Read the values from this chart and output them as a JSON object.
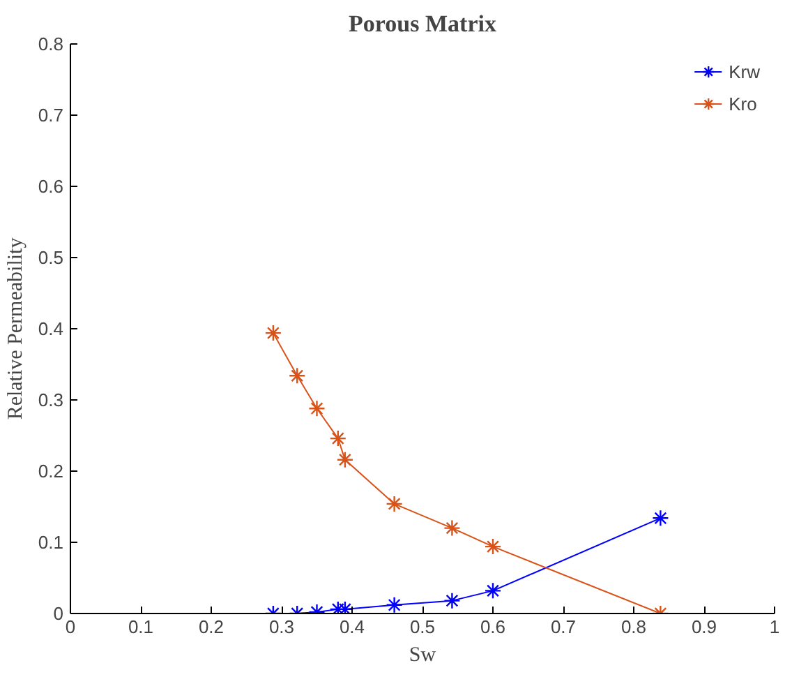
{
  "chart_data": {
    "type": "line",
    "title": "Porous Matrix",
    "xlabel": "Sw",
    "ylabel": "Relative Permeability",
    "x": [
      0.288,
      0.322,
      0.35,
      0.38,
      0.39,
      0.46,
      0.542,
      0.6,
      0.838
    ],
    "series": [
      {
        "name": "Krw",
        "color": "#0000ff",
        "values": [
          0.0,
          0.0,
          0.002,
          0.006,
          0.006,
          0.012,
          0.018,
          0.032,
          0.134
        ]
      },
      {
        "name": "Kro",
        "color": "#d95319",
        "values": [
          0.394,
          0.334,
          0.288,
          0.246,
          0.216,
          0.154,
          0.12,
          0.094,
          0.0
        ]
      }
    ],
    "xlim": [
      0,
      1
    ],
    "xticks": [
      0,
      0.1,
      0.2,
      0.3,
      0.4,
      0.5,
      0.6,
      0.7,
      0.8,
      0.9,
      1
    ],
    "ylim": [
      0,
      0.8
    ],
    "yticks": [
      0,
      0.1,
      0.2,
      0.3,
      0.4,
      0.5,
      0.6,
      0.7,
      0.8
    ],
    "marker": "cross",
    "legend": "top right",
    "grid": false
  }
}
